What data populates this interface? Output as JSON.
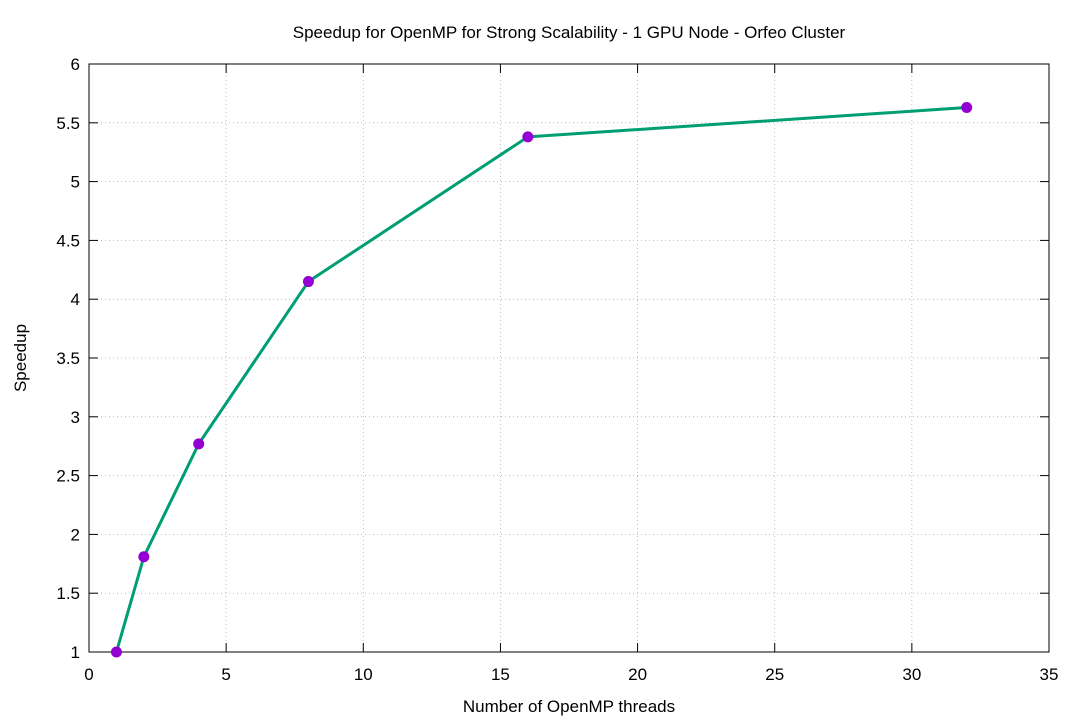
{
  "chart_data": {
    "type": "line",
    "title": "Speedup for OpenMP for Strong Scalability - 1 GPU Node - Orfeo Cluster",
    "xlabel": "Number of OpenMP threads",
    "ylabel": "Speedup",
    "xlim": [
      0,
      35
    ],
    "ylim": [
      1,
      6
    ],
    "xticks": [
      0,
      5,
      10,
      15,
      20,
      25,
      30,
      35
    ],
    "yticks": [
      1,
      1.5,
      2,
      2.5,
      3,
      3.5,
      4,
      4.5,
      5,
      5.5,
      6
    ],
    "xtick_labels": [
      "0",
      "5",
      "10",
      "15",
      "20",
      "25",
      "30",
      "35"
    ],
    "ytick_labels": [
      "1",
      "1.5",
      "2",
      "2.5",
      "3",
      "3.5",
      "4",
      "4.5",
      "5",
      "5.5",
      "6"
    ],
    "grid": true,
    "legend": false,
    "series": [
      {
        "line_color": "#009e73",
        "marker_color": "#9400d3",
        "x": [
          1,
          2,
          4,
          8,
          16,
          32
        ],
        "y": [
          1.0,
          1.81,
          2.77,
          4.15,
          5.38,
          5.63
        ]
      }
    ]
  }
}
